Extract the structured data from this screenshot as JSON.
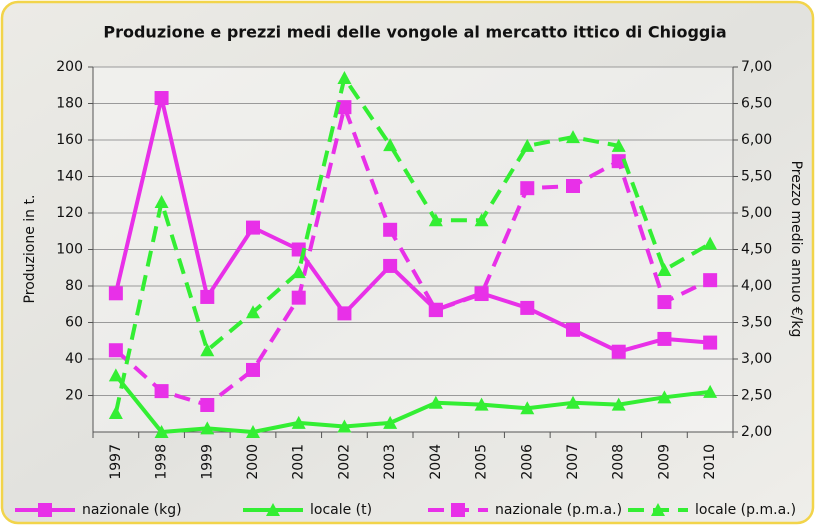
{
  "chart_data": {
    "type": "line",
    "title": "Produzione e prezzi medi delle vongole al mercatto ittico di Chioggia",
    "y_label": "Produzione in t.",
    "y2_label": "Prezzo medio annuo €/kg",
    "categories": [
      "1997",
      "1998",
      "1999",
      "2000",
      "2001",
      "2002",
      "2003",
      "2004",
      "2005",
      "2006",
      "2007",
      "2008",
      "2009",
      "2010"
    ],
    "ylim": [
      0,
      200
    ],
    "yticks": [
      20,
      40,
      60,
      80,
      100,
      120,
      140,
      160,
      180,
      200
    ],
    "y2lim": [
      2,
      7
    ],
    "y2ticks": [
      {
        "value": 2,
        "label": "2,00"
      },
      {
        "value": 2.5,
        "label": "2,50"
      },
      {
        "value": 3,
        "label": "3,00"
      },
      {
        "value": 3.5,
        "label": "3,50"
      },
      {
        "value": 4,
        "label": "4,00"
      },
      {
        "value": 4.5,
        "label": "4,50"
      },
      {
        "value": 5,
        "label": "5,00"
      },
      {
        "value": 5.5,
        "label": "5,50"
      },
      {
        "value": 6,
        "label": "6,00"
      },
      {
        "value": 6.5,
        "label": "6,50"
      },
      {
        "value": 7,
        "label": "7,00"
      }
    ],
    "grid": true,
    "legend": "bottom",
    "series": [
      {
        "name": "nazionale (kg)",
        "color": "#e830e8",
        "marker": "square",
        "dashed": false,
        "axis": "y",
        "values": [
          76,
          183,
          74,
          112,
          100,
          65,
          91,
          67,
          76,
          68,
          56,
          44,
          51,
          49
        ]
      },
      {
        "name": "locale (t)",
        "color": "#33ee33",
        "marker": "triangle",
        "dashed": false,
        "axis": "y",
        "values": [
          31,
          0,
          2,
          0,
          5,
          3,
          5,
          16,
          15,
          13,
          16,
          15,
          19,
          22
        ]
      },
      {
        "name": "nazionale (p.m.a.)",
        "color": "#e830e8",
        "marker": "square",
        "dashed": true,
        "axis": "y2",
        "values": [
          3.12,
          2.56,
          2.37,
          2.85,
          3.84,
          6.45,
          4.77,
          3.67,
          3.89,
          5.34,
          5.37,
          5.71,
          3.78,
          4.08
        ]
      },
      {
        "name": "locale (p.m.a.)",
        "color": "#33ee33",
        "marker": "triangle",
        "dashed": true,
        "axis": "y2",
        "values": [
          2.26,
          5.15,
          3.12,
          3.64,
          4.19,
          6.85,
          5.93,
          4.9,
          4.9,
          5.92,
          6.04,
          5.92,
          4.22,
          4.58
        ]
      }
    ]
  }
}
